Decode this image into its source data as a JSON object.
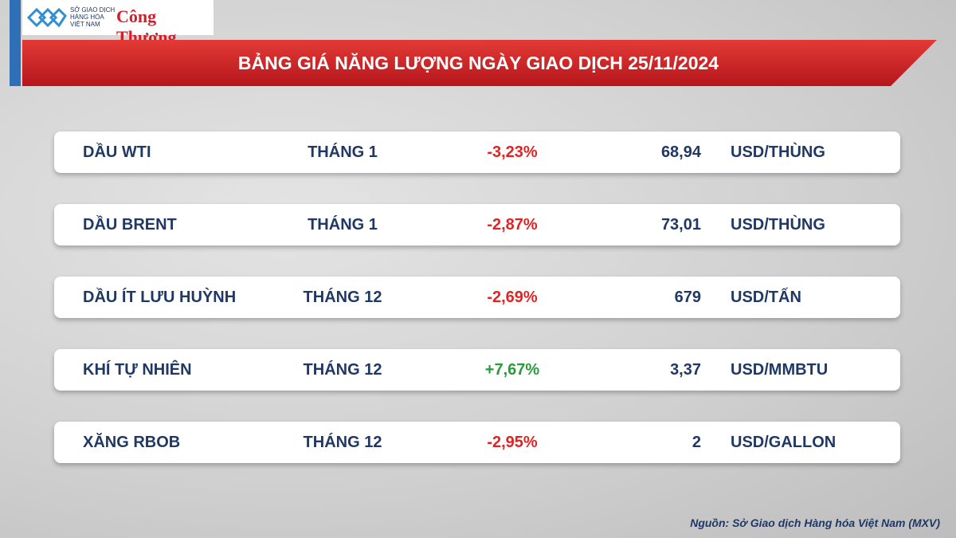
{
  "header": {
    "logo_lines": [
      "SỞ GIAO DỊCH",
      "HÀNG HÓA",
      "VIỆT NAM"
    ],
    "brand": "Công Thương",
    "title": "BẢNG GIÁ NĂNG LƯỢNG NGÀY GIAO DỊCH 25/11/2024"
  },
  "table": {
    "rows": [
      [
        "DẦU WTI",
        "THÁNG 1",
        "-3,23%",
        "68,94",
        "USD/THÙNG"
      ],
      [
        "DẦU BRENT",
        "THÁNG 1",
        "-2,87%",
        "73,01",
        "USD/THÙNG"
      ],
      [
        "DẦU ÍT LƯU HUỲNH",
        "THÁNG 12",
        "-2,69%",
        "679",
        "USD/TẤN"
      ],
      [
        "KHÍ TỰ NHIÊN",
        "THÁNG 12",
        "+7,67%",
        "3,37",
        "USD/MMBTU"
      ],
      [
        "XĂNG RBOB",
        "THÁNG 12",
        "-2,95%",
        "2",
        "USD/GALLON"
      ]
    ],
    "change_colors": [
      "#e02424",
      "#e02424",
      "#e02424",
      "#2a9a3a",
      "#e02424"
    ]
  },
  "footer": {
    "source": "Nguồn: Sở Giao dịch Hàng hóa Việt Nam (MXV)"
  }
}
